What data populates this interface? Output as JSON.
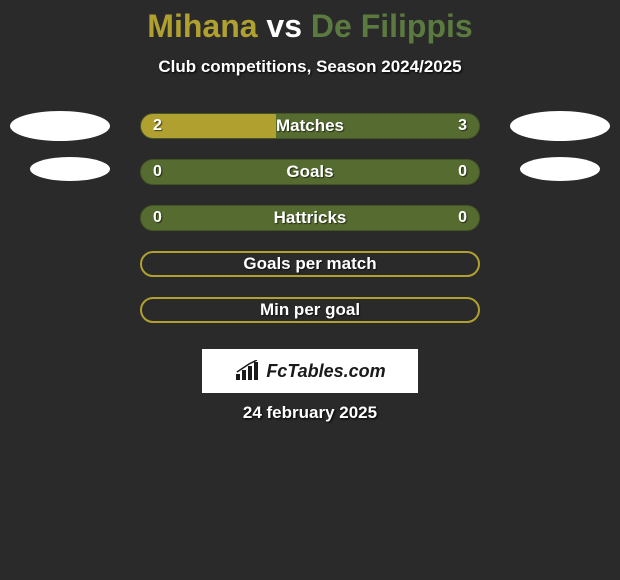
{
  "title": {
    "player1": "Mihana",
    "vs": "vs",
    "player2": "De Filippis",
    "player1_color": "#b0a030",
    "vs_color": "#ffffff",
    "player2_color": "#5a7a40"
  },
  "subtitle": "Club competitions, Season 2024/2025",
  "colors": {
    "background": "#2a2a2a",
    "bar_fill": "#b0a030",
    "bar_empty": "#556b2f",
    "text": "#ffffff",
    "avatar": "#ffffff"
  },
  "stats": [
    {
      "label": "Matches",
      "left_val": "2",
      "right_val": "3",
      "left_pct": 40,
      "right_pct": 0,
      "show_avatars": "large",
      "hollow": false
    },
    {
      "label": "Goals",
      "left_val": "0",
      "right_val": "0",
      "left_pct": 0,
      "right_pct": 0,
      "show_avatars": "small",
      "hollow": false
    },
    {
      "label": "Hattricks",
      "left_val": "0",
      "right_val": "0",
      "left_pct": 0,
      "right_pct": 0,
      "show_avatars": "none",
      "hollow": false
    },
    {
      "label": "Goals per match",
      "left_val": "",
      "right_val": "",
      "left_pct": 0,
      "right_pct": 0,
      "show_avatars": "none",
      "hollow": true
    },
    {
      "label": "Min per goal",
      "left_val": "",
      "right_val": "",
      "left_pct": 0,
      "right_pct": 0,
      "show_avatars": "none",
      "hollow": true
    }
  ],
  "logo": {
    "text": "FcTables.com"
  },
  "date": "24 february 2025"
}
